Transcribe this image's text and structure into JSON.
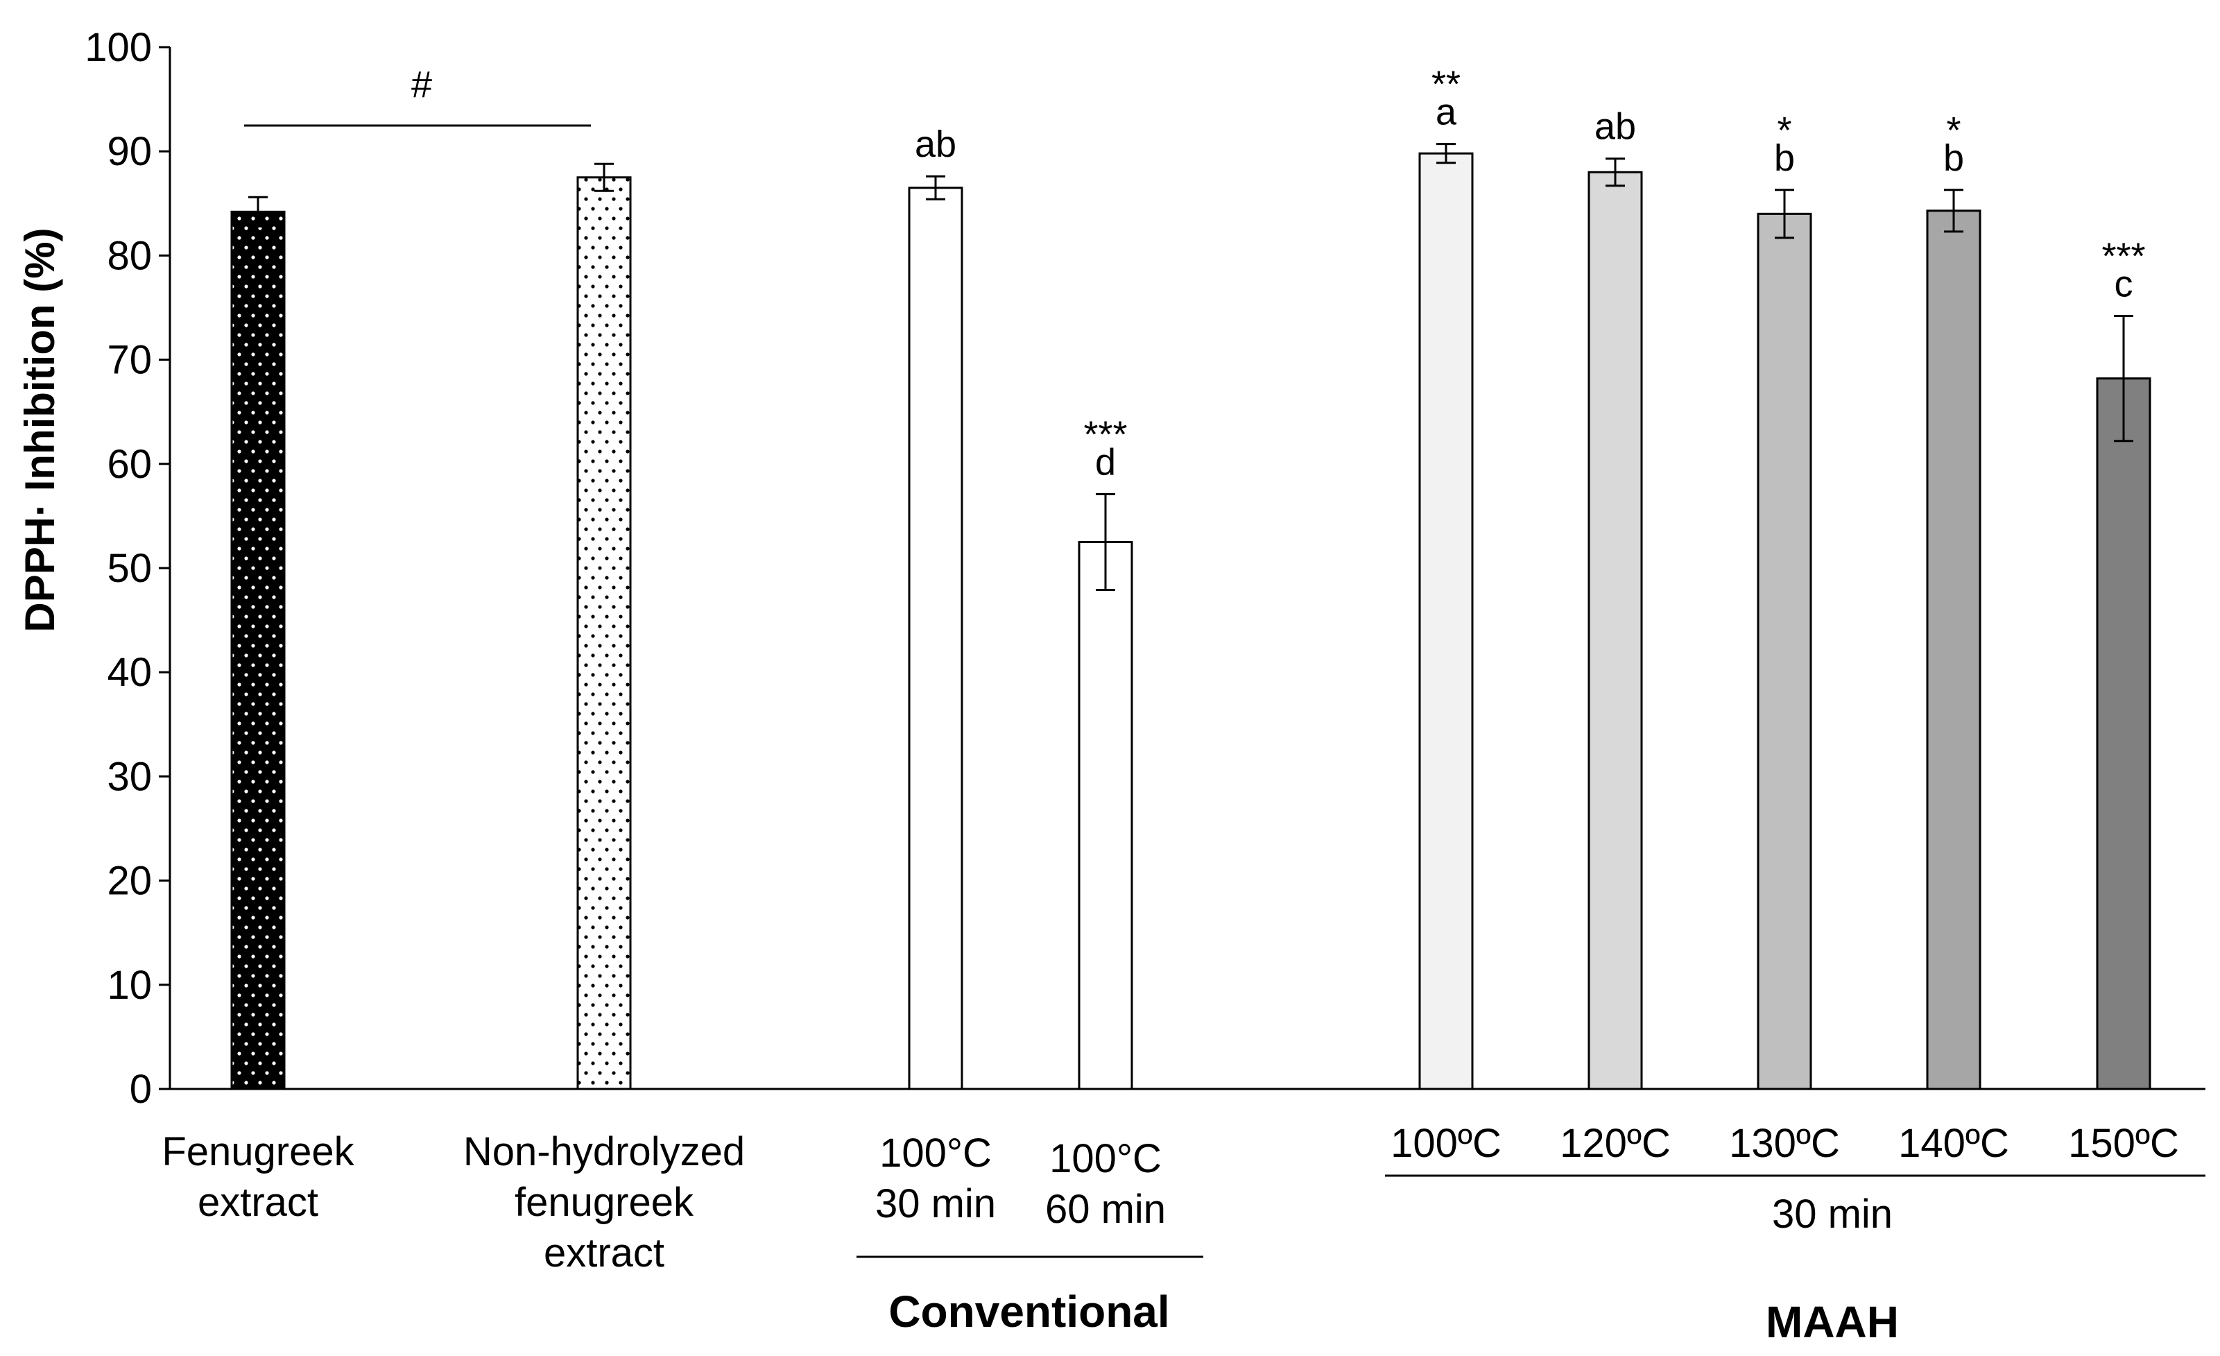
{
  "chart_data": {
    "type": "bar",
    "title": "",
    "xlabel": "",
    "ylabel": "DPPH· Inhibition (%)",
    "ylim": [
      0,
      100
    ],
    "yticks": [
      "0",
      "10",
      "20",
      "30",
      "40",
      "50",
      "60",
      "70",
      "80",
      "90",
      "100"
    ],
    "grid": false,
    "bars": [
      {
        "label_lines": [
          "Fenugreek",
          "extract"
        ],
        "value": 84.2,
        "error": 1.4,
        "fill": "#000000",
        "pattern": "dots-white",
        "letter": "",
        "stars": ""
      },
      {
        "label_lines": [
          "Non-hydrolyzed",
          "fenugreek",
          "extract"
        ],
        "value": 87.5,
        "error": 1.3,
        "fill": "#ffffff",
        "pattern": "dots-black",
        "letter": "",
        "stars": ""
      },
      {
        "label_lines": [
          "100°C",
          "30 min"
        ],
        "value": 86.5,
        "error": 1.1,
        "fill": "#ffffff",
        "pattern": "",
        "letter": "ab",
        "stars": ""
      },
      {
        "label_lines": [
          "100°C",
          "60 min"
        ],
        "value": 52.5,
        "error": 4.6,
        "fill": "#ffffff",
        "pattern": "",
        "letter": "d",
        "stars": "***"
      },
      {
        "label_lines": [
          "100ºC"
        ],
        "value": 89.8,
        "error": 0.9,
        "fill": "#f2f2f2",
        "pattern": "",
        "letter": "a",
        "stars": "**"
      },
      {
        "label_lines": [
          "120ºC"
        ],
        "value": 88.0,
        "error": 1.3,
        "fill": "#d9d9d9",
        "pattern": "",
        "letter": "ab",
        "stars": ""
      },
      {
        "label_lines": [
          "130ºC"
        ],
        "value": 84.0,
        "error": 2.3,
        "fill": "#bfbfbf",
        "pattern": "",
        "letter": "b",
        "stars": "*"
      },
      {
        "label_lines": [
          "140ºC"
        ],
        "value": 84.3,
        "error": 2.0,
        "fill": "#a6a6a6",
        "pattern": "",
        "letter": "b",
        "stars": "*"
      },
      {
        "label_lines": [
          "150ºC"
        ],
        "value": 68.2,
        "error": 6.0,
        "fill": "#808080",
        "pattern": "",
        "letter": "c",
        "stars": "***"
      }
    ],
    "annotations": {
      "hash_symbol": "#",
      "maah_time": "30 min",
      "group_conventional": "Conventional",
      "group_maah": "MAAH"
    }
  }
}
